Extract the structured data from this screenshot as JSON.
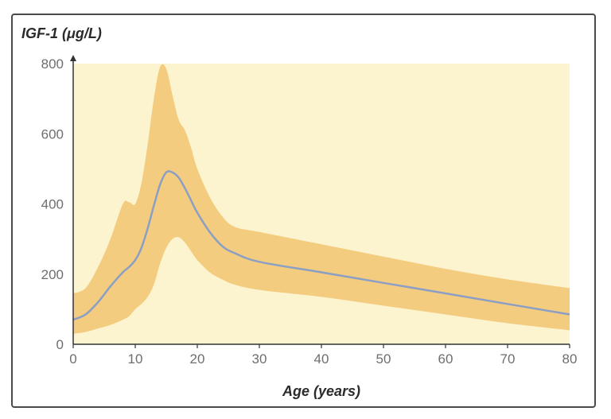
{
  "chart_data": {
    "type": "area",
    "title": "",
    "ylabel": "IGF-1 (μg/L)",
    "xlabel": "Age (years)",
    "xlim": [
      0,
      80
    ],
    "ylim": [
      0,
      800
    ],
    "xticks": [
      0,
      10,
      20,
      30,
      40,
      50,
      60,
      70,
      80
    ],
    "yticks": [
      0,
      200,
      400,
      600,
      800
    ],
    "grid": false,
    "legend": "none",
    "colors": {
      "plot_background": "#fcf4cf",
      "band_fill": "#f4cc80",
      "median_line": "#8b9fc4",
      "axis": "#333333"
    },
    "x": [
      0,
      2,
      4,
      6,
      8,
      9,
      10,
      11,
      12,
      13,
      14,
      15,
      16,
      17,
      18,
      19,
      20,
      22,
      24,
      26,
      30,
      40,
      50,
      60,
      70,
      80
    ],
    "series": [
      {
        "role": "upper",
        "values": [
          145,
          160,
          220,
          300,
          400,
          405,
          400,
          460,
          570,
          700,
          790,
          785,
          710,
          640,
          610,
          560,
          500,
          420,
          365,
          335,
          320,
          285,
          250,
          215,
          185,
          160
        ]
      },
      {
        "role": "median",
        "values": [
          70,
          85,
          120,
          165,
          205,
          220,
          240,
          275,
          330,
          395,
          455,
          490,
          490,
          475,
          445,
          410,
          375,
          320,
          280,
          260,
          235,
          205,
          175,
          145,
          115,
          85
        ]
      },
      {
        "role": "lower",
        "values": [
          30,
          35,
          45,
          55,
          70,
          80,
          100,
          115,
          135,
          170,
          230,
          275,
          300,
          305,
          290,
          265,
          240,
          205,
          185,
          170,
          155,
          135,
          110,
          85,
          60,
          40
        ]
      }
    ]
  }
}
